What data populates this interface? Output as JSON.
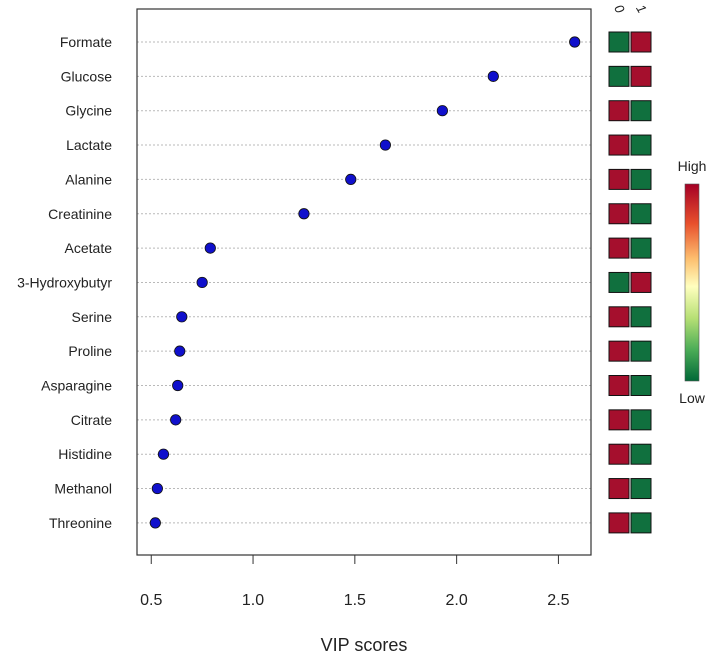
{
  "chart_data": {
    "type": "scatter",
    "xlabel": "VIP scores",
    "xlim": [
      0.43,
      2.66
    ],
    "xticks": [
      "0.5",
      "1.0",
      "1.5",
      "2.0",
      "2.5"
    ],
    "categories": [
      "Formate",
      "Glucose",
      "Glycine",
      "Lactate",
      "Alanine",
      "Creatinine",
      "Acetate",
      "3-Hydroxybutyr",
      "Serine",
      "Proline",
      "Asparagine",
      "Citrate",
      "Histidine",
      "Methanol",
      "Threonine"
    ],
    "values": [
      2.58,
      2.18,
      1.93,
      1.65,
      1.48,
      1.25,
      0.79,
      0.75,
      0.65,
      0.64,
      0.63,
      0.62,
      0.56,
      0.53,
      0.52
    ],
    "point_color": "#1010cc",
    "grid": "horizontal dotted",
    "groups": [
      "0",
      "1"
    ],
    "heat": [
      [
        "low",
        "high"
      ],
      [
        "low",
        "high"
      ],
      [
        "high",
        "low"
      ],
      [
        "high",
        "low"
      ],
      [
        "high",
        "low"
      ],
      [
        "high",
        "low"
      ],
      [
        "high",
        "low"
      ],
      [
        "low",
        "high"
      ],
      [
        "high",
        "low"
      ],
      [
        "high",
        "low"
      ],
      [
        "high",
        "low"
      ],
      [
        "high",
        "low"
      ],
      [
        "high",
        "low"
      ],
      [
        "high",
        "low"
      ],
      [
        "high",
        "low"
      ]
    ],
    "heat_colors": {
      "high": "#a50f2d",
      "low": "#10703e"
    },
    "legend": {
      "high_label": "High",
      "low_label": "Low",
      "placement": "right"
    }
  }
}
